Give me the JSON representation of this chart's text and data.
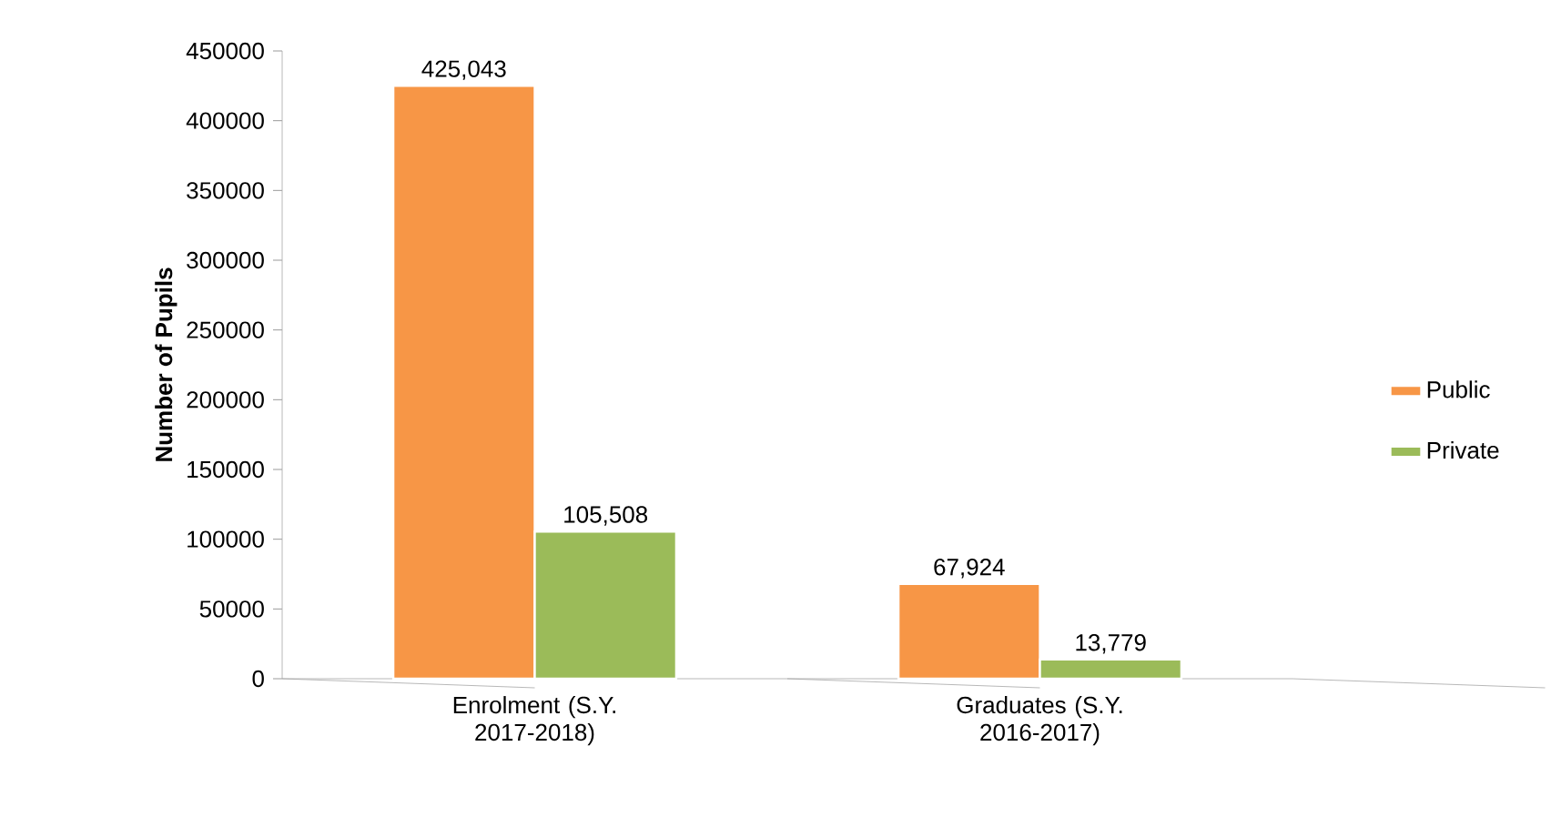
{
  "chart_data": {
    "type": "bar",
    "ylabel": "Number of Pupils",
    "categories": [
      "Enrolment (S.Y. 2017-2018)",
      "Graduates (S.Y. 2016-2017)"
    ],
    "series": [
      {
        "name": "Public",
        "color": "#f79646",
        "values": [
          425043,
          67924
        ],
        "value_labels": [
          "425,043",
          "67,924"
        ]
      },
      {
        "name": "Private",
        "color": "#9bbb59",
        "values": [
          105508,
          13779
        ],
        "value_labels": [
          "105,508",
          "13,779"
        ]
      }
    ],
    "ylim": [
      0,
      450000
    ],
    "yticks": [
      0,
      50000,
      100000,
      150000,
      200000,
      250000,
      300000,
      350000,
      400000,
      450000
    ],
    "grid": false,
    "legend": "right"
  }
}
